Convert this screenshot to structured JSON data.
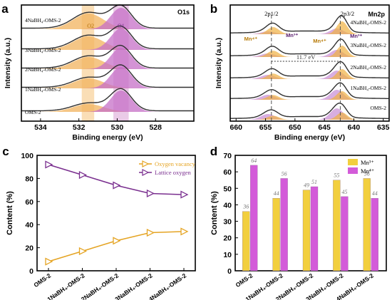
{
  "figure": {
    "panel_letters": [
      "a",
      "b",
      "c",
      "d"
    ]
  },
  "chart_data": [
    {
      "panel": "a",
      "type": "line",
      "title": "O1s",
      "xlabel": "Binding energy (eV)",
      "ylabel": "Intensity (a.u.)",
      "xlim": [
        535,
        526
      ],
      "x_ticks": [
        534,
        532,
        530,
        528
      ],
      "reversed_x": true,
      "samples": [
        "4NaBH₄-OMS-2",
        "3NaBH₄-OMS-2",
        "2NaBH₄-OMS-2",
        "1NaBH₄-OMS-2",
        "OMS-2"
      ],
      "peak_labels": [
        "O2",
        "O1"
      ],
      "peak_positions": {
        "O2": 531.5,
        "O1": 529.8
      },
      "highlight_bands": [
        {
          "name": "O2",
          "from": 531.85,
          "to": 531.2
        },
        {
          "name": "O1",
          "from": 530.2,
          "to": 529.4
        }
      ],
      "colors": {
        "O2": "#f6c27a",
        "O1": "#d9a1d3",
        "envelope": "#303030"
      }
    },
    {
      "panel": "b",
      "type": "line",
      "title": "Mn2p",
      "xlabel": "Binding energy (eV)",
      "ylabel": "Intensity (a.u.)",
      "xlim": [
        661,
        634
      ],
      "x_ticks": [
        660,
        655,
        650,
        645,
        640,
        635
      ],
      "reversed_x": true,
      "samples": [
        "4NaBH₄-OMS-2",
        "3NaBH₄-OMS-2",
        "2NaBH₄-OMS-2",
        "1NaBH₄-OMS-2",
        "OMS-2"
      ],
      "peak_labels": {
        "p12": "2p1/2",
        "p32": "2p3/2"
      },
      "peak_positions": {
        "p12": 654,
        "p32": 642.3
      },
      "splitting_label": "11.7 eV",
      "component_labels": [
        "Mn⁴⁺",
        "Mn³⁺"
      ],
      "colors": {
        "Mn4": "#f0b041",
        "Mn3": "#c78cd4",
        "envelope": "#303030"
      }
    },
    {
      "panel": "c",
      "type": "line",
      "xlabel": "",
      "ylabel": "Content (%)",
      "categories": [
        "OMS-2",
        "1NaBH₄-OMS-2",
        "2NaBH₄-OMS-2",
        "3NaBH₄-OMS-2",
        "4NaBH₄-OMS-2"
      ],
      "ylim": [
        0,
        100
      ],
      "y_ticks": [
        0,
        20,
        40,
        60,
        80,
        100
      ],
      "legend_position": "top-right",
      "series": [
        {
          "name": "Oxygen vacancy",
          "values": [
            8,
            17,
            26,
            33,
            34
          ],
          "color": "#e5a423"
        },
        {
          "name": "Lattice oxygen",
          "values": [
            92,
            83,
            74,
            67,
            66
          ],
          "color": "#7a2f8f"
        }
      ]
    },
    {
      "panel": "d",
      "type": "bar",
      "xlabel": "",
      "ylabel": "Content (%)",
      "categories": [
        "OMS-2",
        "1NaBH₄-OMS-2",
        "2NaBH₄-OMS-2",
        "3NaBH₄-OMS-2",
        "4NaBH₄-OMS-2"
      ],
      "ylim": [
        0,
        70
      ],
      "y_ticks": [
        0,
        10,
        20,
        30,
        40,
        50,
        60,
        70
      ],
      "legend_position": "top-right",
      "series": [
        {
          "name": "Mn³⁺",
          "values": [
            36,
            44,
            49,
            55,
            56
          ],
          "color": "#f2cf3e"
        },
        {
          "name": "Mn⁴⁺",
          "values": [
            64,
            56,
            51,
            45,
            44
          ],
          "color": "#d35bd9"
        }
      ]
    }
  ]
}
